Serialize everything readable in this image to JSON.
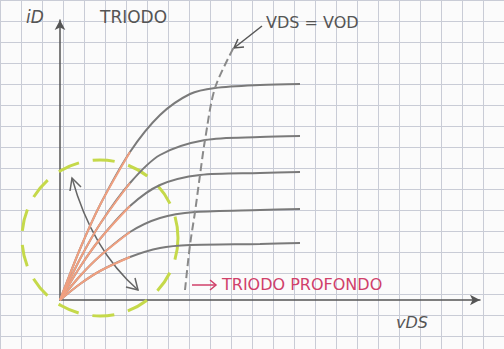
{
  "chart_data": {
    "type": "line",
    "x_label": "vDS",
    "y_label": "iD",
    "xlim": [
      0,
      42
    ],
    "ylim": [
      0,
      28
    ],
    "tick_labels": false,
    "grid": false,
    "annotations": [
      {
        "text": "TRIODO",
        "color": "#555555"
      },
      {
        "text": "VDS = VOD",
        "color": "#555555"
      },
      {
        "text": "TRIODO PROFONDO",
        "color": "#d0406a"
      }
    ],
    "series": [
      {
        "color": "#7a7a7a",
        "line_style": "solid",
        "marker": "none",
        "x": [
          0,
          2,
          4,
          7,
          10,
          13,
          15.5,
          20,
          24
        ],
        "values": [
          0,
          5.1,
          9.5,
          14.8,
          18.5,
          20.6,
          21.2,
          21.5,
          21.6
        ]
      },
      {
        "color": "#7a7a7a",
        "line_style": "solid",
        "marker": "none",
        "x": [
          0,
          2,
          4,
          7,
          10,
          14.5,
          20,
          24
        ],
        "values": [
          0,
          4.1,
          7.6,
          11.7,
          14.5,
          16,
          16.3,
          16.4
        ]
      },
      {
        "color": "#7a7a7a",
        "line_style": "solid",
        "marker": "none",
        "x": [
          0,
          2,
          4,
          7,
          10,
          14,
          20,
          24
        ],
        "values": [
          0,
          3.3,
          6.1,
          9.4,
          11.5,
          12.5,
          12.7,
          12.8
        ]
      },
      {
        "color": "#7a7a7a",
        "line_style": "solid",
        "marker": "none",
        "x": [
          0,
          2,
          4,
          7,
          10,
          13.5,
          20,
          24
        ],
        "values": [
          0,
          2.4,
          4.4,
          6.8,
          8.2,
          8.8,
          9.0,
          9.1
        ]
      },
      {
        "color": "#7a7a7a",
        "line_style": "solid",
        "marker": "none",
        "x": [
          0,
          2,
          4,
          7,
          10,
          13,
          20,
          24
        ],
        "values": [
          0,
          1.6,
          2.9,
          4.3,
          5.2,
          5.5,
          5.6,
          5.7
        ]
      },
      {
        "color": "#8a8a8a",
        "line_style": "dashed",
        "marker": "none",
        "x": [
          12.5,
          13,
          13.5,
          14,
          14.5,
          15.5,
          17.5
        ],
        "values": [
          1,
          5.5,
          8.8,
          12.5,
          16,
          21.2,
          25.5
        ]
      },
      {
        "color": "#f0a080",
        "line_style": "solid",
        "marker": "none",
        "x": [
          0,
          2,
          4,
          7
        ],
        "values": [
          0,
          5.1,
          9.5,
          14.8
        ]
      },
      {
        "color": "#f0a080",
        "line_style": "solid",
        "marker": "none",
        "x": [
          0,
          2,
          4,
          7
        ],
        "values": [
          0,
          4.1,
          7.6,
          11.7
        ]
      },
      {
        "color": "#f0a080",
        "line_style": "solid",
        "marker": "none",
        "x": [
          0,
          2,
          4,
          7
        ],
        "values": [
          0,
          3.3,
          6.1,
          9.4
        ]
      },
      {
        "color": "#f0a080",
        "line_style": "solid",
        "marker": "none",
        "x": [
          0,
          2,
          4,
          7
        ],
        "values": [
          0,
          2.4,
          4.4,
          6.8
        ]
      },
      {
        "color": "#f0a080",
        "line_style": "solid",
        "marker": "none",
        "x": [
          0,
          2,
          4,
          7
        ],
        "values": [
          0,
          1.6,
          2.9,
          4.3
        ]
      }
    ]
  }
}
